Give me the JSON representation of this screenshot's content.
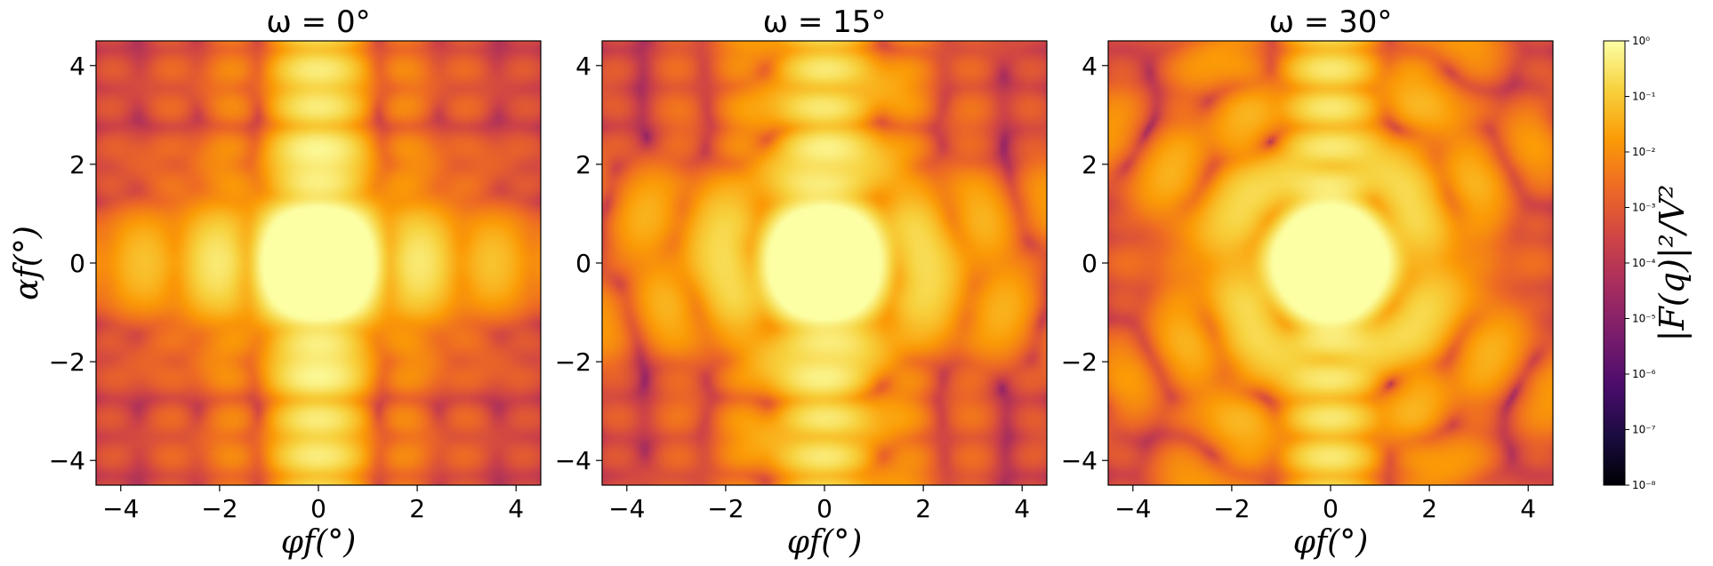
{
  "chart_data": [
    {
      "type": "heatmap",
      "title": "ω = 0°",
      "xlabel": "φf(°)",
      "ylabel": "αf(°)",
      "xlim": [
        -4.5,
        4.5
      ],
      "ylim": [
        -4.5,
        4.5
      ],
      "xticks": [
        "−4",
        "−2",
        "0",
        "2",
        "4"
      ],
      "yticks": [
        "4",
        "2",
        "0",
        "−2",
        "−4"
      ],
      "omega_deg": 0,
      "colormap": "inferno",
      "color_scale": "log"
    },
    {
      "type": "heatmap",
      "title": "ω = 15°",
      "xlabel": "φf(°)",
      "xlim": [
        -4.5,
        4.5
      ],
      "ylim": [
        -4.5,
        4.5
      ],
      "xticks": [
        "−4",
        "−2",
        "0",
        "2",
        "4"
      ],
      "yticks": [
        "4",
        "2",
        "0",
        "−2",
        "−4"
      ],
      "omega_deg": 15,
      "colormap": "inferno",
      "color_scale": "log"
    },
    {
      "type": "heatmap",
      "title": "ω = 30°",
      "xlabel": "φf(°)",
      "xlim": [
        -4.5,
        4.5
      ],
      "ylim": [
        -4.5,
        4.5
      ],
      "xticks": [
        "−4",
        "−2",
        "0",
        "2",
        "4"
      ],
      "yticks": [
        "4",
        "2",
        "0",
        "−2",
        "−4"
      ],
      "omega_deg": 30,
      "colormap": "inferno",
      "color_scale": "log"
    }
  ],
  "colorbar": {
    "label": "|F(q)|²/V²",
    "scale": "log",
    "range": [
      1e-08,
      1
    ],
    "ticks": [
      "10⁻⁸",
      "10⁻⁷",
      "10⁻⁶",
      "10⁻⁵",
      "10⁻⁴",
      "10⁻³",
      "10⁻²",
      "10⁻¹",
      "10⁰"
    ],
    "colors": [
      "#000004",
      "#1b0c41",
      "#4a0c6b",
      "#781c6d",
      "#a52c60",
      "#cf4446",
      "#ed6925",
      "#fb9b06",
      "#f7d13d",
      "#fcffa4"
    ]
  }
}
